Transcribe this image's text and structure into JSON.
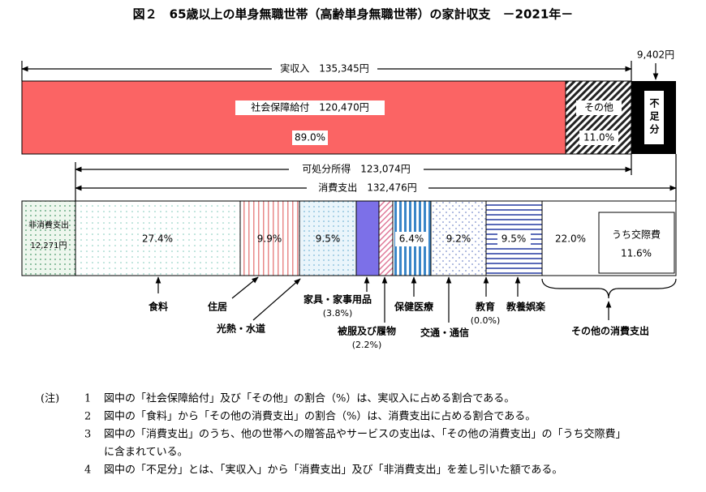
{
  "title": "図２　65歳以上の単身無職世帯（高齢単身無職世帯）の家計収支　－2021年－",
  "income_bar": {
    "total": "実収入　135,345円",
    "shortfall_amount": "9,402円",
    "social_security": {
      "label": "社会保障給付　120,470円",
      "share": "89.0%"
    },
    "other": {
      "label": "その他",
      "share": "11.0%"
    },
    "shortfall": "不足分"
  },
  "disposable_income": "可処分所得　123,074円",
  "consumption": "消費支出　132,476円",
  "spending_bar": {
    "non_consumption": {
      "label": "非消費支出",
      "amount": "12,271円"
    },
    "shares": [
      "27.4%",
      "9.9%",
      "9.5%",
      "6.4%",
      "9.2%",
      "9.5%",
      "22.0%"
    ],
    "social_expenses": {
      "label": "うち交際費",
      "share": "11.6%"
    }
  },
  "categories": {
    "food": "食料",
    "housing": "住居",
    "utilities": "光熱・水道",
    "furniture": {
      "label": "家具・家事用品",
      "share": "(3.8%)"
    },
    "clothing": {
      "label": "被服及び履物",
      "share": "(2.2%)"
    },
    "medical": "保健医療",
    "transport": "交通・通信",
    "education": {
      "label": "教育",
      "share": "(0.0%)"
    },
    "recreation": "教養娯楽",
    "other": "その他の消費支出"
  },
  "notes": {
    "marker": "(注)",
    "items": [
      {
        "number": "1",
        "lines": [
          "図中の「社会保障給付」及び「その他」の割合（%）は、実収入に占める割合である。"
        ]
      },
      {
        "number": "2",
        "lines": [
          "図中の「食料」から「その他の消費支出」の割合（%）は、消費支出に占める割合である。"
        ]
      },
      {
        "number": "3",
        "lines": [
          "図中の「消費支出」のうち、他の世帯への贈答品やサービスの支出は、「その他の消費支出」の「うち交際費」",
          "に含まれている。"
        ]
      },
      {
        "number": "4",
        "lines": [
          "図中の「不足分」とは、「実収入」から「消費支出」及び「非消費支出」を差し引いた額である。"
        ]
      }
    ]
  }
}
